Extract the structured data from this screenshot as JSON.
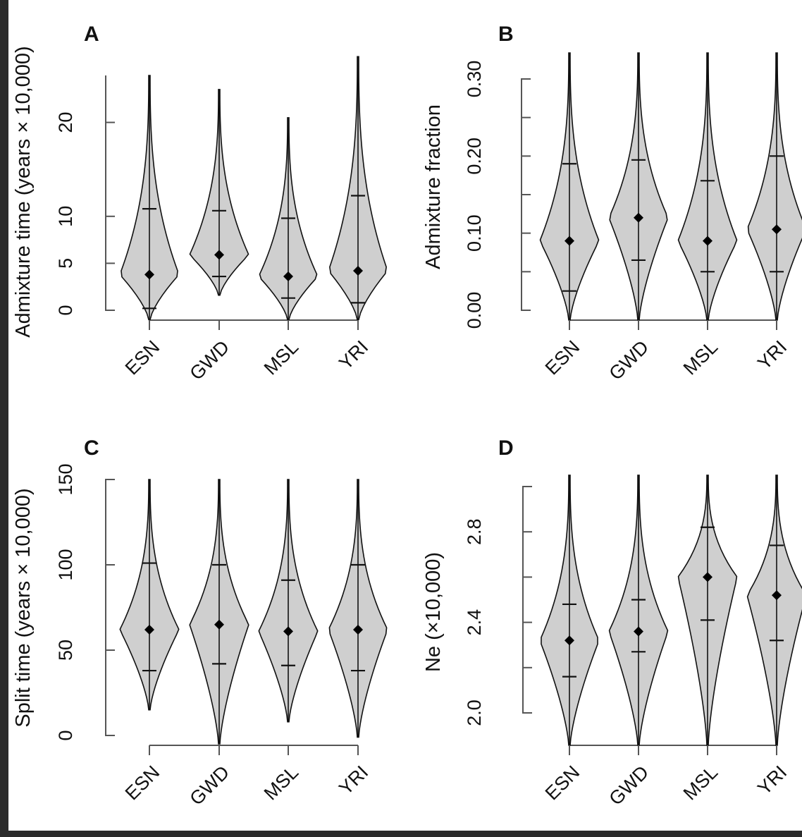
{
  "colors": {
    "violin_fill": "#cfcfcf",
    "outline": "#111111",
    "median": "#000000",
    "background": "#ffffff"
  },
  "chart_data": [
    {
      "panel": "A",
      "type": "violin",
      "ylabel": "Admixture time (years × 10,000)",
      "categories": [
        "ESN",
        "GWD",
        "MSL",
        "YRI"
      ],
      "ylim": [
        0,
        25
      ],
      "yticks": [
        0,
        5,
        10,
        20
      ],
      "ytick_labels": [
        "0",
        "5",
        "10",
        "20"
      ],
      "median": [
        3.8,
        5.9,
        3.6,
        4.2
      ],
      "q1": [
        0.2,
        3.6,
        1.3,
        0.8
      ],
      "q3": [
        10.8,
        10.6,
        9.8,
        12.2
      ],
      "whisker_max": [
        25,
        23.5,
        20.5,
        27
      ],
      "violin_min": [
        -1,
        1.6,
        -1,
        -1
      ]
    },
    {
      "panel": "B",
      "type": "violin",
      "ylabel": "Admixture fraction",
      "categories": [
        "ESN",
        "GWD",
        "MSL",
        "YRI"
      ],
      "ylim": [
        0.0,
        0.3
      ],
      "yticks": [
        0.0,
        0.05,
        0.1,
        0.15,
        0.2,
        0.25,
        0.3
      ],
      "ytick_labels": [
        "0.00",
        "",
        "0.10",
        "",
        "0.20",
        "",
        "0.30"
      ],
      "median": [
        0.09,
        0.12,
        0.09,
        0.105
      ],
      "q1": [
        0.025,
        0.065,
        0.05,
        0.05
      ],
      "q3": [
        0.19,
        0.195,
        0.168,
        0.2
      ],
      "whisker_max": [
        0.34,
        0.34,
        0.34,
        0.34
      ],
      "violin_min": [
        -0.015,
        -0.015,
        -0.015,
        -0.015
      ]
    },
    {
      "panel": "C",
      "type": "violin",
      "ylabel": "Split time (years × 10,000)",
      "categories": [
        "ESN",
        "GWD",
        "MSL",
        "YRI"
      ],
      "ylim": [
        0,
        150
      ],
      "yticks": [
        0,
        50,
        100,
        150
      ],
      "ytick_labels": [
        "0",
        "50",
        "100",
        "150"
      ],
      "median": [
        62,
        65,
        61,
        62
      ],
      "q1": [
        38,
        42,
        41,
        38
      ],
      "q3": [
        101,
        100,
        91,
        100
      ],
      "whisker_max": [
        150,
        150,
        150,
        150
      ],
      "violin_min": [
        15,
        -5,
        8,
        -1
      ]
    },
    {
      "panel": "D",
      "type": "violin",
      "ylabel": "Ne (×10,000)",
      "categories": [
        "ESN",
        "GWD",
        "MSL",
        "YRI"
      ],
      "ylim": [
        2.0,
        3.0
      ],
      "yticks": [
        2.0,
        2.2,
        2.4,
        2.6,
        2.8,
        3.0
      ],
      "ytick_labels": [
        "2.0",
        "",
        "2.4",
        "",
        "2.8",
        ""
      ],
      "median": [
        2.32,
        2.36,
        2.6,
        2.52
      ],
      "q1": [
        2.16,
        2.27,
        2.41,
        2.32
      ],
      "q3": [
        2.48,
        2.5,
        2.82,
        2.74
      ],
      "whisker_max": [
        3.05,
        3.05,
        3.05,
        3.05
      ],
      "violin_min": [
        1.85,
        1.85,
        1.85,
        1.85
      ]
    }
  ]
}
